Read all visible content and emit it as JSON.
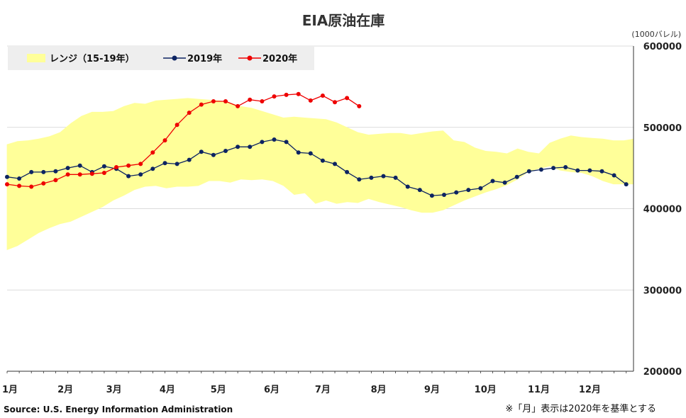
{
  "chart_data": {
    "type": "line",
    "title": "EIA原油在庫",
    "y_unit_label": "(1000バレル)",
    "ylim": [
      200000,
      600000
    ],
    "y_ticks": [
      200000,
      300000,
      400000,
      500000,
      600000
    ],
    "y_tick_labels": [
      "200000",
      "300000",
      "400000",
      "500000",
      "600000"
    ],
    "y_axis_side": "right",
    "x_weeks": 53,
    "month_labels": [
      {
        "label": "1月",
        "week": 1
      },
      {
        "label": "2月",
        "week": 5.8
      },
      {
        "label": "3月",
        "week": 9.8
      },
      {
        "label": "4月",
        "week": 14.2
      },
      {
        "label": "5月",
        "week": 18.4
      },
      {
        "label": "6月",
        "week": 22.8
      },
      {
        "label": "7月",
        "week": 27.0
      },
      {
        "label": "8月",
        "week": 31.6
      },
      {
        "label": "9月",
        "week": 36.0
      },
      {
        "label": "10月",
        "week": 40.4
      },
      {
        "label": "11月",
        "week": 44.8
      },
      {
        "label": "12月",
        "week": 49.0
      }
    ],
    "grid": true,
    "legend_position": "top-left",
    "range": {
      "name": "レンジ（15-19年）",
      "color": "#ffff99",
      "max": [
        479000,
        483000,
        484000,
        486000,
        489000,
        494000,
        505000,
        514000,
        519000,
        519000,
        520000,
        526000,
        530000,
        529000,
        533000,
        534000,
        535000,
        536000,
        535000,
        534000,
        533000,
        530000,
        526000,
        524000,
        520000,
        516000,
        512000,
        513000,
        512000,
        511000,
        510000,
        506000,
        500000,
        494000,
        491000,
        492000,
        493000,
        493000,
        491000,
        493000,
        495000,
        496000,
        484000,
        482000,
        475000,
        471000,
        470000,
        468000,
        474000,
        470000,
        468000,
        481000,
        486000,
        490000,
        488000,
        487000,
        486000,
        484000,
        484000,
        486000
      ],
      "min": [
        349000,
        354000,
        362000,
        370000,
        376000,
        381000,
        384000,
        390000,
        396000,
        402000,
        410000,
        416000,
        423000,
        427000,
        428000,
        425000,
        427000,
        427000,
        428000,
        434000,
        434000,
        432000,
        436000,
        435000,
        436000,
        434000,
        428000,
        417000,
        419000,
        406000,
        410000,
        406000,
        408000,
        407000,
        412000,
        408000,
        405000,
        402000,
        398000,
        395000,
        395000,
        398000,
        404000,
        410000,
        415000,
        420000,
        424000,
        429000,
        436000,
        445000,
        449000,
        452000,
        447000,
        445000,
        444000,
        440000,
        434000,
        430000,
        430000,
        430000
      ],
      "xs": [
        1,
        1.9,
        2.8,
        3.7,
        4.6,
        5.5,
        6.4,
        7.3,
        8.2,
        9.1,
        10,
        10.9,
        11.8,
        12.7,
        13.6,
        14.5,
        15.4,
        16.3,
        17.2,
        18.1,
        19,
        19.9,
        20.8,
        21.7,
        22.6,
        23.5,
        24.4,
        25.3,
        26.2,
        27.1,
        28,
        28.9,
        29.8,
        30.7,
        31.6,
        32.5,
        33.4,
        34.3,
        35.2,
        36.1,
        37,
        37.9,
        38.8,
        39.7,
        40.6,
        41.5,
        42.4,
        43.3,
        44.2,
        45.1,
        46,
        46.9,
        47.8,
        48.7,
        49.6,
        50.5,
        51.4,
        52.3,
        53.2,
        54
      ]
    },
    "series": [
      {
        "name": "2019年",
        "color": "#0d2462",
        "values": [
          439000,
          437000,
          445000,
          445000,
          446000,
          450000,
          453000,
          445000,
          452000,
          449000,
          440000,
          442000,
          449000,
          456000,
          455000,
          460000,
          470000,
          466000,
          471000,
          476000,
          476000,
          482000,
          485000,
          482000,
          469000,
          468000,
          459000,
          455000,
          445000,
          436000,
          438000,
          440000,
          438000,
          427000,
          423000,
          416000,
          417000,
          420000,
          423000,
          425000,
          434000,
          432000,
          439000,
          446000,
          448000,
          450000,
          451000,
          447000,
          447000,
          446000,
          441000,
          430000
        ]
      },
      {
        "name": "2020年",
        "color": "#ee0000",
        "values": [
          430000,
          428000,
          427000,
          431000,
          435000,
          442000,
          442000,
          443000,
          444000,
          451000,
          453000,
          455000,
          469000,
          484000,
          503000,
          518000,
          528000,
          532000,
          532000,
          526000,
          534000,
          532000,
          538000,
          540000,
          541000,
          533000,
          539000,
          531000,
          536000,
          526000
        ]
      }
    ]
  },
  "source_text": "Source: U.S. Energy Information Administration",
  "note_text": "※「月」表示は2020年を基準とする"
}
